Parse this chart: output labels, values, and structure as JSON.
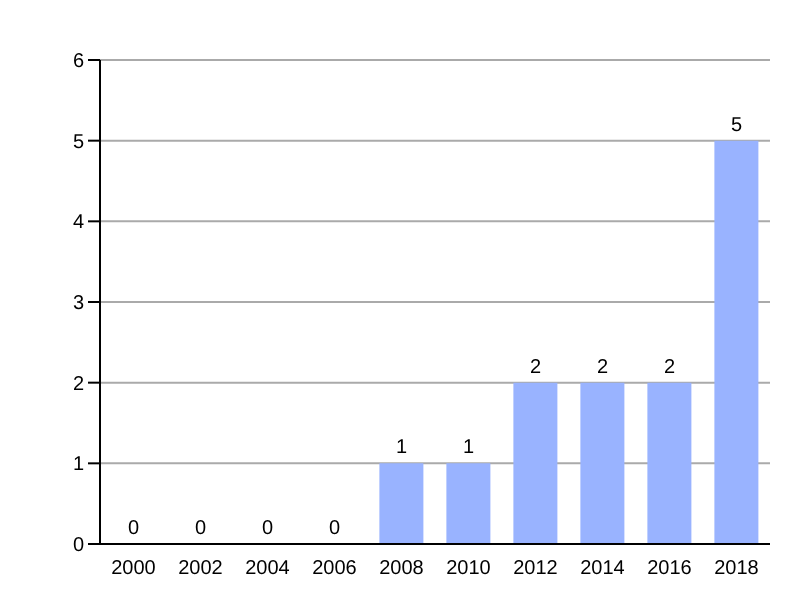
{
  "chart_data": {
    "type": "bar",
    "categories": [
      "2000",
      "2002",
      "2004",
      "2006",
      "2008",
      "2010",
      "2012",
      "2014",
      "2016",
      "2018"
    ],
    "values": [
      0,
      0,
      0,
      0,
      1,
      1,
      2,
      2,
      2,
      5
    ],
    "color": "#99b3ff",
    "ylim": [
      0,
      6
    ],
    "yticks": [
      0,
      1,
      2,
      3,
      4,
      5,
      6
    ],
    "grid": "y",
    "data_labels": true
  }
}
